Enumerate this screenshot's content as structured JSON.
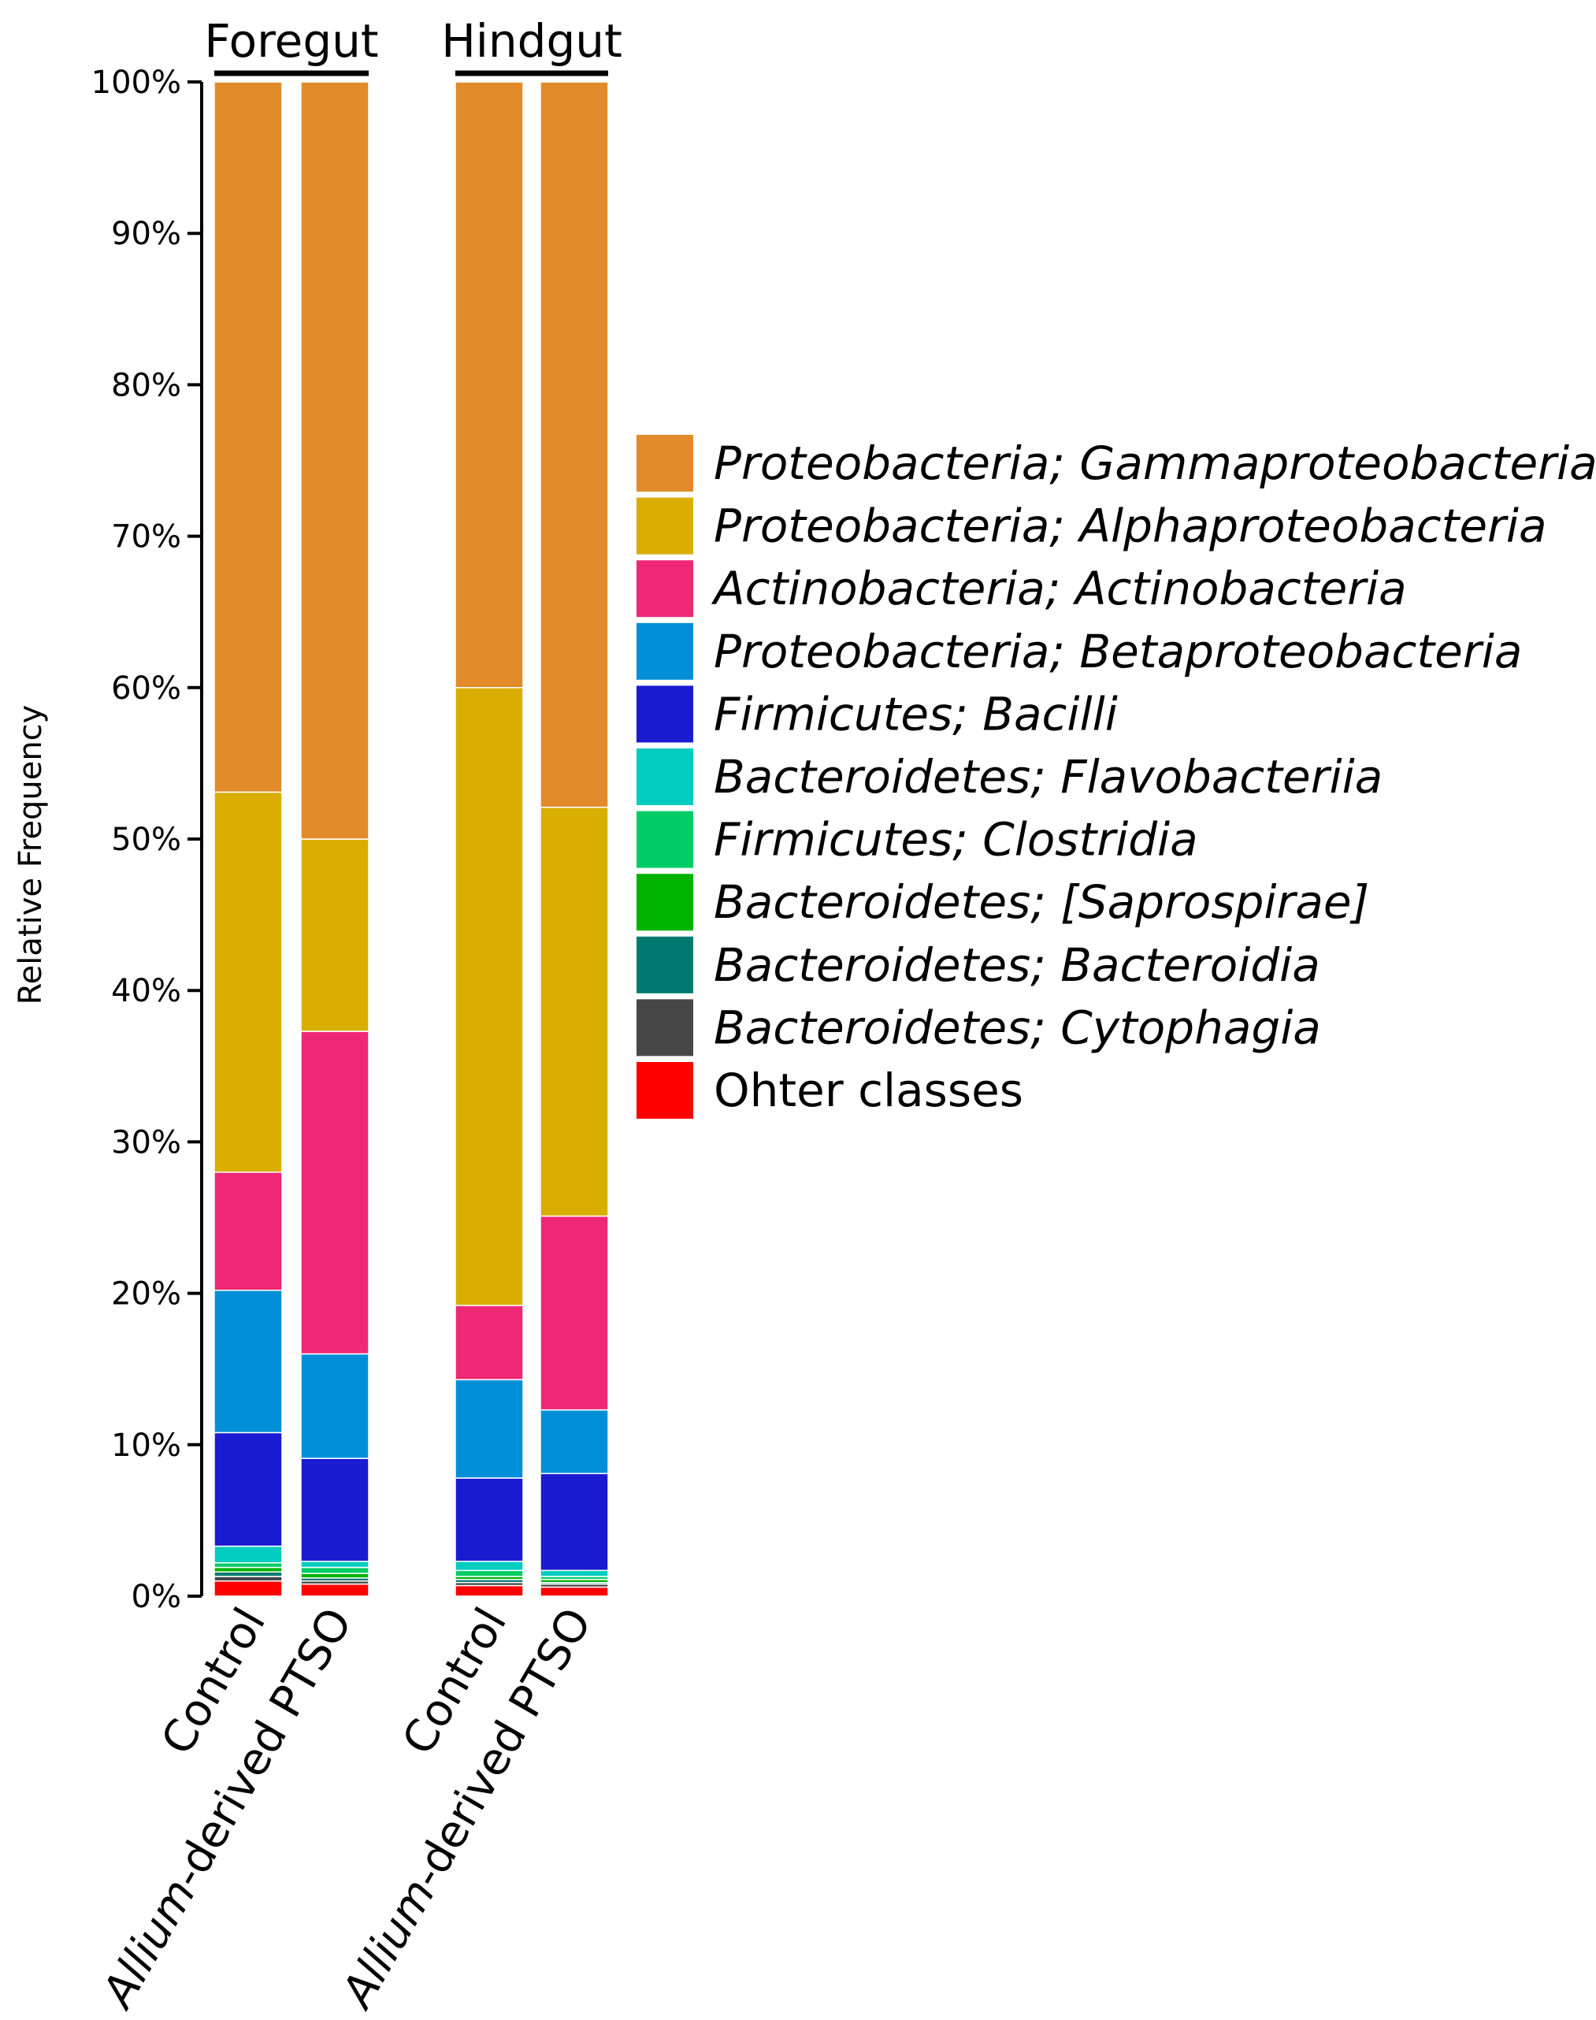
{
  "chart_data": {
    "type": "bar",
    "stacked": true,
    "normalized": true,
    "ylabel": "Relative Frequency",
    "ylim": [
      0,
      100
    ],
    "yticks": [
      "0%",
      "10%",
      "20%",
      "30%",
      "40%",
      "50%",
      "60%",
      "70%",
      "80%",
      "90%",
      "100%"
    ],
    "groups": [
      {
        "title": "Foregut",
        "categories": [
          "Control",
          "Allium-derived PTSO"
        ]
      },
      {
        "title": "Hindgut",
        "categories": [
          "Control",
          "Allium-derived PTSO"
        ]
      }
    ],
    "bars": [
      {
        "group": "Foregut",
        "category": "Control"
      },
      {
        "group": "Foregut",
        "category": "Allium-derived PTSO"
      },
      {
        "group": "Hindgut",
        "category": "Control"
      },
      {
        "group": "Hindgut",
        "category": "Allium-derived PTSO"
      }
    ],
    "series": [
      {
        "name": "Ohter classes",
        "color": "#ff0000",
        "italic": false,
        "values": [
          1.0,
          0.8,
          0.7,
          0.6
        ]
      },
      {
        "name": "Bacteroidetes; Cytophagia",
        "color": "#474747",
        "italic": true,
        "values": [
          0.3,
          0.2,
          0.2,
          0.2
        ]
      },
      {
        "name": "Bacteroidetes; Bacteroidia",
        "color": "#007a6e",
        "italic": true,
        "values": [
          0.3,
          0.2,
          0.2,
          0.1
        ]
      },
      {
        "name": "Bacteroidetes; [Saprospirae]",
        "color": "#00b300",
        "italic": true,
        "values": [
          0.3,
          0.3,
          0.2,
          0.2
        ]
      },
      {
        "name": "Firmicutes; Clostridia",
        "color": "#00cc66",
        "italic": true,
        "values": [
          0.3,
          0.4,
          0.4,
          0.2
        ]
      },
      {
        "name": "Bacteroidetes; Flavobacteriia",
        "color": "#00ccc0",
        "italic": true,
        "values": [
          1.1,
          0.4,
          0.6,
          0.4
        ]
      },
      {
        "name": "Firmicutes; Bacilli",
        "color": "#1a1ad1",
        "italic": true,
        "values": [
          7.5,
          6.8,
          5.5,
          6.4
        ]
      },
      {
        "name": "Proteobacteria; Betaproteobacteria",
        "color": "#008fd6",
        "italic": true,
        "values": [
          9.4,
          6.9,
          6.5,
          4.2
        ]
      },
      {
        "name": "Actinobacteria; Actinobacteria",
        "color": "#ee2875",
        "italic": true,
        "values": [
          7.8,
          21.3,
          4.9,
          12.8
        ]
      },
      {
        "name": "Proteobacteria; Alphaproteobacteria",
        "color": "#d9ae00",
        "italic": true,
        "values": [
          25.1,
          12.7,
          40.8,
          27.0
        ]
      },
      {
        "name": "Proteobacteria; Gammaproteobacteria",
        "color": "#e28b2a",
        "italic": true,
        "values": [
          46.9,
          50.0,
          40.0,
          47.9
        ]
      }
    ],
    "legend_position": "right",
    "grid": false
  }
}
